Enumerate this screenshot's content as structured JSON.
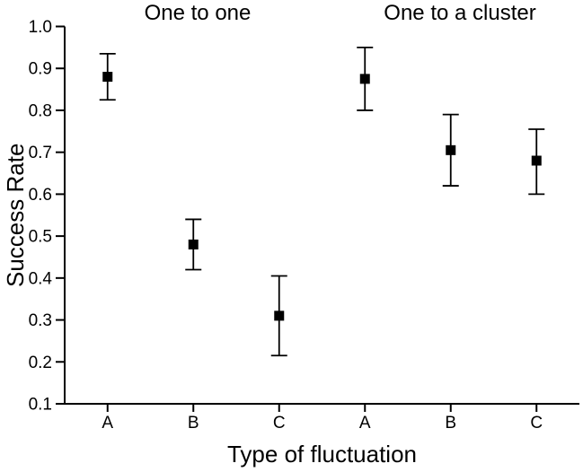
{
  "figure": {
    "background": "#ffffff",
    "foreground": "#000000"
  },
  "chart_data": {
    "type": "scatter",
    "marker": "filled-square",
    "marker_color": "#000000",
    "error_bars": true,
    "grid": false,
    "legend": null,
    "xlabel": "Type of fluctuation",
    "ylabel": "Success Rate",
    "ylim": [
      0.1,
      1.0
    ],
    "yticks": [
      1.0,
      0.9,
      0.8,
      0.7,
      0.6,
      0.5,
      0.4,
      0.3,
      0.2,
      0.1
    ],
    "ytick_labels": [
      "1.0",
      "0.9",
      "0.8",
      "0.7",
      "0.6",
      "0.5",
      "0.4",
      "0.3",
      "0.2",
      "0.1"
    ],
    "categories": [
      "A",
      "B",
      "C"
    ],
    "groups": [
      {
        "title": "One to one",
        "points": [
          {
            "category": "A",
            "y": 0.88,
            "y_upper": 0.935,
            "y_lower": 0.825
          },
          {
            "category": "B",
            "y": 0.48,
            "y_upper": 0.54,
            "y_lower": 0.42
          },
          {
            "category": "C",
            "y": 0.31,
            "y_upper": 0.405,
            "y_lower": 0.215
          }
        ]
      },
      {
        "title": "One to a cluster",
        "points": [
          {
            "category": "A",
            "y": 0.875,
            "y_upper": 0.95,
            "y_lower": 0.8
          },
          {
            "category": "B",
            "y": 0.705,
            "y_upper": 0.79,
            "y_lower": 0.62
          },
          {
            "category": "C",
            "y": 0.68,
            "y_upper": 0.755,
            "y_lower": 0.6
          }
        ]
      }
    ]
  }
}
